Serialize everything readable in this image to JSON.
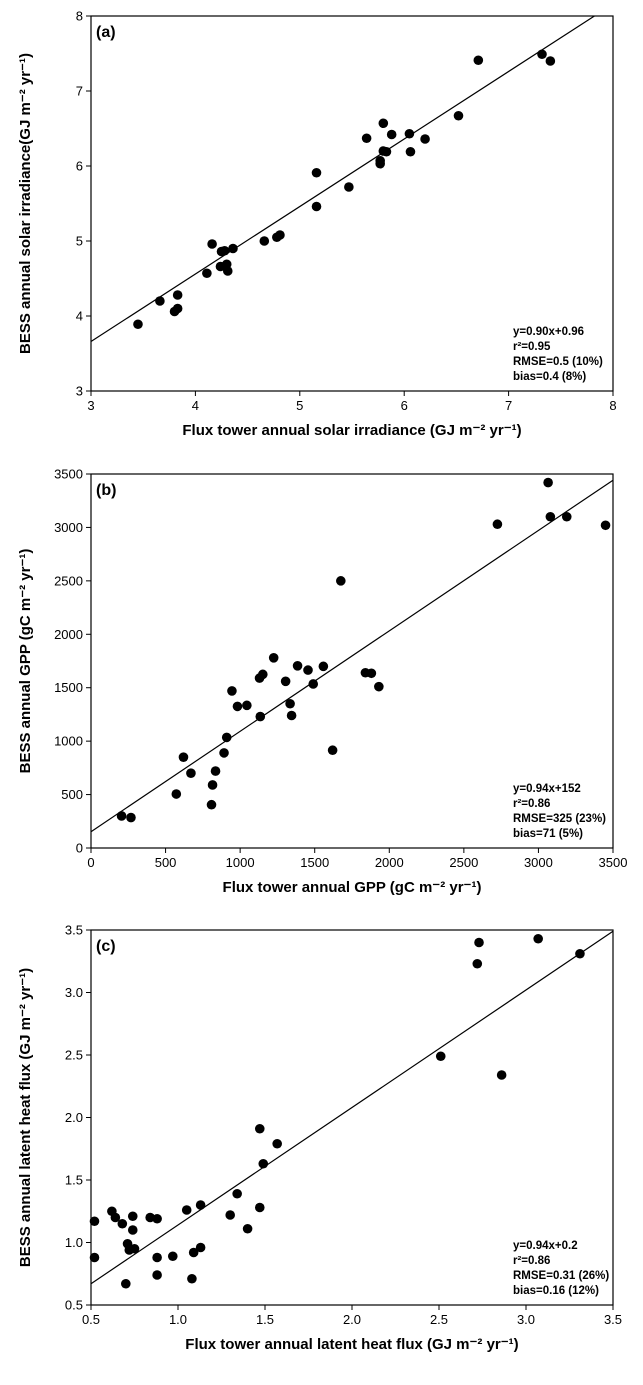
{
  "chart_data": [
    {
      "type": "scatter",
      "panel_label": "(a)",
      "xlabel": "Flux tower annual solar irradiance (GJ m⁻² yr⁻¹)",
      "ylabel": "BESS annual solar irradiance(GJ m⁻² yr⁻¹)",
      "xlim": [
        3,
        8
      ],
      "ylim": [
        3,
        8
      ],
      "xticks": [
        "3",
        "4",
        "5",
        "6",
        "7",
        "8"
      ],
      "yticks": [
        "3",
        "4",
        "5",
        "6",
        "7",
        "8"
      ],
      "fit": {
        "slope": 0.9,
        "intercept": 0.96
      },
      "stats": [
        "y=0.90x+0.96",
        "r²=0.95",
        "RMSE=0.5 (10%)",
        "bias=0.4 (8%)"
      ],
      "legend_position": "bottom-right",
      "points": [
        [
          3.45,
          3.89
        ],
        [
          3.66,
          4.2
        ],
        [
          3.8,
          4.06
        ],
        [
          3.83,
          4.1
        ],
        [
          3.83,
          4.28
        ],
        [
          4.11,
          4.57
        ],
        [
          4.16,
          4.96
        ],
        [
          4.24,
          4.66
        ],
        [
          4.25,
          4.86
        ],
        [
          4.28,
          4.87
        ],
        [
          4.3,
          4.69
        ],
        [
          4.31,
          4.6
        ],
        [
          4.36,
          4.9
        ],
        [
          4.66,
          5.0
        ],
        [
          4.78,
          5.05
        ],
        [
          4.81,
          5.08
        ],
        [
          5.16,
          5.91
        ],
        [
          5.16,
          5.46
        ],
        [
          5.47,
          5.72
        ],
        [
          5.64,
          6.37
        ],
        [
          5.77,
          6.03
        ],
        [
          5.77,
          6.07
        ],
        [
          5.8,
          6.57
        ],
        [
          5.8,
          6.2
        ],
        [
          5.83,
          6.19
        ],
        [
          5.88,
          6.42
        ],
        [
          6.05,
          6.43
        ],
        [
          6.06,
          6.19
        ],
        [
          6.2,
          6.36
        ],
        [
          6.52,
          6.67
        ],
        [
          6.71,
          7.41
        ],
        [
          7.32,
          7.49
        ],
        [
          7.4,
          7.4
        ]
      ]
    },
    {
      "type": "scatter",
      "panel_label": "(b)",
      "xlabel": "Flux tower annual GPP (gC m⁻² yr⁻¹)",
      "ylabel": "BESS annual GPP (gC m⁻² yr⁻¹)",
      "xlim": [
        0,
        3500
      ],
      "ylim": [
        0,
        3500
      ],
      "xticks": [
        "0",
        "500",
        "1000",
        "1500",
        "2000",
        "2500",
        "3000",
        "3500"
      ],
      "yticks": [
        "0",
        "500",
        "1000",
        "1500",
        "2000",
        "2500",
        "3000",
        "3500"
      ],
      "fit": {
        "slope": 0.94,
        "intercept": 152
      },
      "stats": [
        "y=0.94x+152",
        "r²=0.86",
        "RMSE=325 (23%)",
        "bias=71 (5%)"
      ],
      "legend_position": "bottom-right",
      "points": [
        [
          205,
          300
        ],
        [
          268,
          285
        ],
        [
          572,
          505
        ],
        [
          620,
          850
        ],
        [
          670,
          700
        ],
        [
          808,
          405
        ],
        [
          815,
          590
        ],
        [
          835,
          720
        ],
        [
          892,
          890
        ],
        [
          910,
          1035
        ],
        [
          945,
          1470
        ],
        [
          982,
          1325
        ],
        [
          1045,
          1335
        ],
        [
          1130,
          1590
        ],
        [
          1135,
          1230
        ],
        [
          1152,
          1625
        ],
        [
          1225,
          1780
        ],
        [
          1305,
          1560
        ],
        [
          1335,
          1350
        ],
        [
          1345,
          1240
        ],
        [
          1385,
          1705
        ],
        [
          1455,
          1665
        ],
        [
          1490,
          1535
        ],
        [
          1558,
          1700
        ],
        [
          1620,
          915
        ],
        [
          1675,
          2500
        ],
        [
          1840,
          1640
        ],
        [
          1880,
          1635
        ],
        [
          1930,
          1510
        ],
        [
          2725,
          3030
        ],
        [
          3065,
          3420
        ],
        [
          3080,
          3100
        ],
        [
          3190,
          3100
        ],
        [
          3450,
          3020
        ]
      ]
    },
    {
      "type": "scatter",
      "panel_label": "(c)",
      "xlabel": "Flux tower annual latent heat flux (GJ m⁻² yr⁻¹)",
      "ylabel": "BESS annual latent heat flux (GJ m⁻² yr⁻¹)",
      "xlim": [
        0.5,
        3.5
      ],
      "ylim": [
        0.5,
        3.5
      ],
      "xticks": [
        "0.5",
        "1.0",
        "1.5",
        "2.0",
        "2.5",
        "3.0",
        "3.5"
      ],
      "yticks": [
        "0.5",
        "1.0",
        "1.5",
        "2.0",
        "2.5",
        "3.0",
        "3.5"
      ],
      "fit": {
        "slope": 0.94,
        "intercept": 0.2
      },
      "stats": [
        "y=0.94x+0.2",
        "r²=0.86",
        "RMSE=0.31 (26%)",
        "bias=0.16 (12%)"
      ],
      "legend_position": "bottom-right",
      "points": [
        [
          0.52,
          1.17
        ],
        [
          0.52,
          0.88
        ],
        [
          0.62,
          1.25
        ],
        [
          0.64,
          1.2
        ],
        [
          0.68,
          1.15
        ],
        [
          0.7,
          0.67
        ],
        [
          0.71,
          0.99
        ],
        [
          0.72,
          0.94
        ],
        [
          0.74,
          1.1
        ],
        [
          0.74,
          1.21
        ],
        [
          0.75,
          0.95
        ],
        [
          0.84,
          1.2
        ],
        [
          0.88,
          0.88
        ],
        [
          0.88,
          0.74
        ],
        [
          0.88,
          1.19
        ],
        [
          0.97,
          0.89
        ],
        [
          1.05,
          1.26
        ],
        [
          1.08,
          0.71
        ],
        [
          1.09,
          0.92
        ],
        [
          1.13,
          1.3
        ],
        [
          1.13,
          0.96
        ],
        [
          1.3,
          1.22
        ],
        [
          1.34,
          1.39
        ],
        [
          1.4,
          1.11
        ],
        [
          1.47,
          1.91
        ],
        [
          1.47,
          1.28
        ],
        [
          1.49,
          1.63
        ],
        [
          1.57,
          1.79
        ],
        [
          2.51,
          2.49
        ],
        [
          2.72,
          3.23
        ],
        [
          2.73,
          3.4
        ],
        [
          2.86,
          2.34
        ],
        [
          3.07,
          3.43
        ],
        [
          3.31,
          3.31
        ]
      ]
    }
  ]
}
